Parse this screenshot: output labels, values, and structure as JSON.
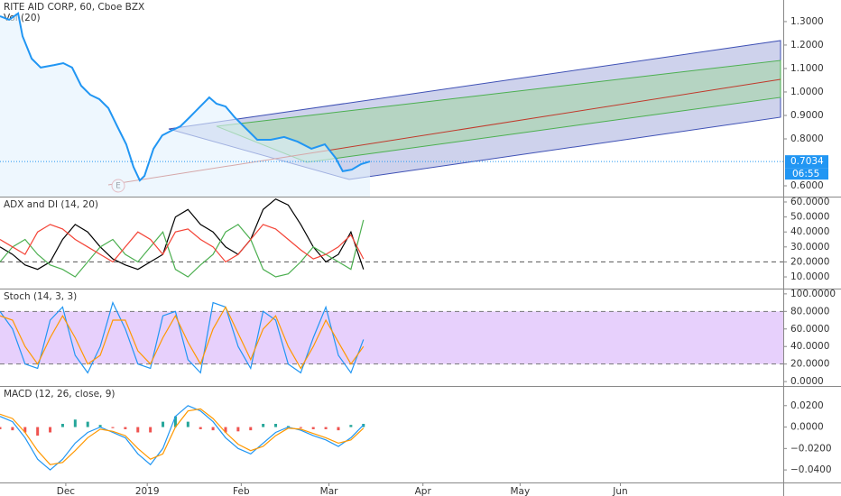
{
  "chart_data": [
    {
      "type": "line",
      "title": "RITE AID CORP, 60, Cboe BZX",
      "volume_label": "Vol (20)",
      "earnings_marker": "E",
      "color": "#2196f3",
      "area_color": "#e3f2fd",
      "xlim": [
        0,
        250
      ],
      "ylim": [
        0.554,
        1.392
      ],
      "yticks": [
        {
          "value": 1.3,
          "label": "1.3000"
        },
        {
          "value": 1.2,
          "label": "1.2000"
        },
        {
          "value": 1.1,
          "label": "1.1000"
        },
        {
          "value": 1.0,
          "label": "1.0000"
        },
        {
          "value": 0.9,
          "label": "0.9000"
        },
        {
          "value": 0.8,
          "label": "0.8000"
        },
        {
          "value": 0.6,
          "label": "0.6000"
        }
      ],
      "x": [
        0,
        2.9,
        5.8,
        7.2,
        10.1,
        13,
        17.3,
        20.2,
        23,
        25.9,
        28.8,
        31.7,
        34.6,
        37.4,
        40.3,
        42.6,
        44.6,
        46.1,
        49,
        51.8,
        54.7,
        57.6,
        60.5,
        63.4,
        66.8,
        69.1,
        72,
        74.9,
        77.8,
        82.1,
        86.4,
        90.7,
        95,
        99.4,
        103.7,
        107.1,
        109.4,
        112.3,
        115.2,
        118.1
      ],
      "values": [
        1.323,
        1.308,
        1.335,
        1.238,
        1.142,
        1.104,
        1.115,
        1.123,
        1.104,
        1.027,
        0.988,
        0.969,
        0.931,
        0.854,
        0.777,
        0.681,
        0.623,
        0.642,
        0.758,
        0.815,
        0.835,
        0.854,
        0.892,
        0.931,
        0.977,
        0.95,
        0.938,
        0.892,
        0.854,
        0.796,
        0.796,
        0.808,
        0.788,
        0.758,
        0.777,
        0.719,
        0.662,
        0.669,
        0.692,
        0.7034
      ],
      "last_value": {
        "value": 0.7034,
        "label": "0.7034"
      },
      "countdown": "06:55"
    },
    {
      "type": "line",
      "title": "ADX and DI (14, 20)",
      "xlim": [
        0,
        250
      ],
      "ylim": [
        2.2,
        63
      ],
      "yticks": [
        {
          "value": 60,
          "label": "60.0000"
        },
        {
          "value": 50,
          "label": "50.0000"
        },
        {
          "value": 40,
          "label": "40.0000"
        },
        {
          "value": 30,
          "label": "30.0000"
        },
        {
          "value": 20,
          "label": "20.0000"
        },
        {
          "value": 10,
          "label": "10.0000"
        }
      ],
      "level": 20,
      "x": [
        0,
        4,
        8,
        12,
        16,
        20,
        24,
        28,
        32,
        36,
        40,
        44,
        48,
        52,
        56,
        60,
        64,
        68,
        72,
        76,
        80,
        84,
        88,
        92,
        96,
        100,
        104,
        108,
        112,
        116
      ],
      "series": [
        {
          "color": "#000000",
          "values": [
            30,
            25,
            18,
            15,
            20,
            35,
            45,
            40,
            30,
            22,
            18,
            15,
            20,
            25,
            50,
            55,
            45,
            40,
            30,
            25,
            35,
            55,
            62,
            58,
            45,
            30,
            20,
            25,
            40,
            15
          ]
        },
        {
          "color": "#4caf50",
          "values": [
            20,
            30,
            35,
            25,
            18,
            15,
            10,
            20,
            30,
            35,
            25,
            20,
            30,
            40,
            15,
            10,
            18,
            25,
            40,
            45,
            35,
            15,
            10,
            12,
            20,
            30,
            25,
            20,
            15,
            48
          ]
        },
        {
          "color": "#f44336",
          "values": [
            35,
            30,
            25,
            40,
            45,
            42,
            35,
            30,
            25,
            20,
            30,
            40,
            35,
            25,
            40,
            42,
            35,
            30,
            20,
            25,
            35,
            45,
            42,
            35,
            28,
            22,
            25,
            30,
            38,
            22
          ]
        }
      ]
    },
    {
      "type": "line",
      "title": "Stoch (14, 3, 3)",
      "xlim": [
        0,
        250
      ],
      "ylim": [
        -5,
        105
      ],
      "yticks": [
        {
          "value": 100,
          "label": "100.0000"
        },
        {
          "value": 80,
          "label": "80.0000"
        },
        {
          "value": 60,
          "label": "60.0000"
        },
        {
          "value": 40,
          "label": "40.0000"
        },
        {
          "value": 20,
          "label": "20.0000"
        },
        {
          "value": 0,
          "label": "0.0000"
        }
      ],
      "band": [
        20,
        80
      ],
      "band_color": "#e1c4fb",
      "x": [
        0,
        4,
        8,
        12,
        16,
        20,
        24,
        28,
        32,
        36,
        40,
        44,
        48,
        52,
        56,
        60,
        64,
        68,
        72,
        76,
        80,
        84,
        88,
        92,
        96,
        100,
        104,
        108,
        112,
        116
      ],
      "series": [
        {
          "color": "#2196f3",
          "values": [
            80,
            60,
            20,
            15,
            70,
            85,
            30,
            10,
            40,
            90,
            60,
            20,
            15,
            75,
            80,
            25,
            10,
            90,
            85,
            40,
            15,
            80,
            70,
            20,
            10,
            50,
            85,
            30,
            10,
            48
          ]
        },
        {
          "color": "#ff9800",
          "values": [
            75,
            70,
            40,
            20,
            50,
            75,
            50,
            20,
            30,
            70,
            70,
            35,
            20,
            50,
            75,
            45,
            20,
            60,
            85,
            55,
            25,
            60,
            75,
            40,
            15,
            40,
            70,
            45,
            20,
            40
          ]
        }
      ]
    },
    {
      "type": "line",
      "title": "MACD (12, 26, close, 9)",
      "xlim": [
        0,
        250
      ],
      "ylim": [
        -0.0517,
        0.0375
      ],
      "yticks": [
        {
          "value": 0.02,
          "label": "0.0200"
        },
        {
          "value": 0,
          "label": "0.0000"
        },
        {
          "value": -0.02,
          "label": "−0.0200"
        },
        {
          "value": -0.04,
          "label": "−0.0400"
        }
      ],
      "xticks": [
        {
          "value": 21,
          "label": "Dec"
        },
        {
          "value": 47,
          "label": "2019"
        },
        {
          "value": 77,
          "label": "Feb"
        },
        {
          "value": 105,
          "label": "Mar"
        },
        {
          "value": 135,
          "label": "Apr"
        },
        {
          "value": 166,
          "label": "May"
        },
        {
          "value": 198,
          "label": "Jun"
        }
      ],
      "x": [
        0,
        4,
        8,
        12,
        16,
        20,
        24,
        28,
        32,
        36,
        40,
        44,
        48,
        52,
        56,
        60,
        64,
        68,
        72,
        76,
        80,
        84,
        88,
        92,
        96,
        100,
        104,
        108,
        112,
        116
      ],
      "histogram": {
        "up_color": "#26a69a",
        "down_color": "#ef5350",
        "values": [
          -0.002,
          -0.003,
          -0.005,
          -0.008,
          -0.005,
          0.003,
          0.007,
          0.005,
          0.002,
          -0.001,
          -0.002,
          -0.005,
          -0.005,
          0.005,
          0.01,
          0.005,
          -0.002,
          -0.003,
          -0.005,
          -0.004,
          -0.003,
          0.003,
          0.003,
          0.001,
          -0.001,
          -0.002,
          -0.002,
          -0.003,
          0.002,
          0.003
        ]
      },
      "series": [
        {
          "color": "#2196f3",
          "values": [
            0.01,
            0.005,
            -0.01,
            -0.03,
            -0.04,
            -0.03,
            -0.015,
            -0.005,
            0,
            -0.005,
            -0.01,
            -0.025,
            -0.035,
            -0.02,
            0.01,
            0.02,
            0.015,
            0.005,
            -0.01,
            -0.02,
            -0.025,
            -0.015,
            -0.005,
            0,
            -0.003,
            -0.008,
            -0.012,
            -0.018,
            -0.01,
            0.002
          ]
        },
        {
          "color": "#ff9800",
          "values": [
            0.012,
            0.008,
            -0.005,
            -0.022,
            -0.035,
            -0.033,
            -0.022,
            -0.01,
            -0.002,
            -0.004,
            -0.008,
            -0.02,
            -0.03,
            -0.025,
            0,
            0.015,
            0.017,
            0.008,
            -0.005,
            -0.016,
            -0.022,
            -0.018,
            -0.008,
            -0.001,
            -0.002,
            -0.006,
            -0.01,
            -0.015,
            -0.012,
            -0.001
          ]
        }
      ]
    }
  ]
}
